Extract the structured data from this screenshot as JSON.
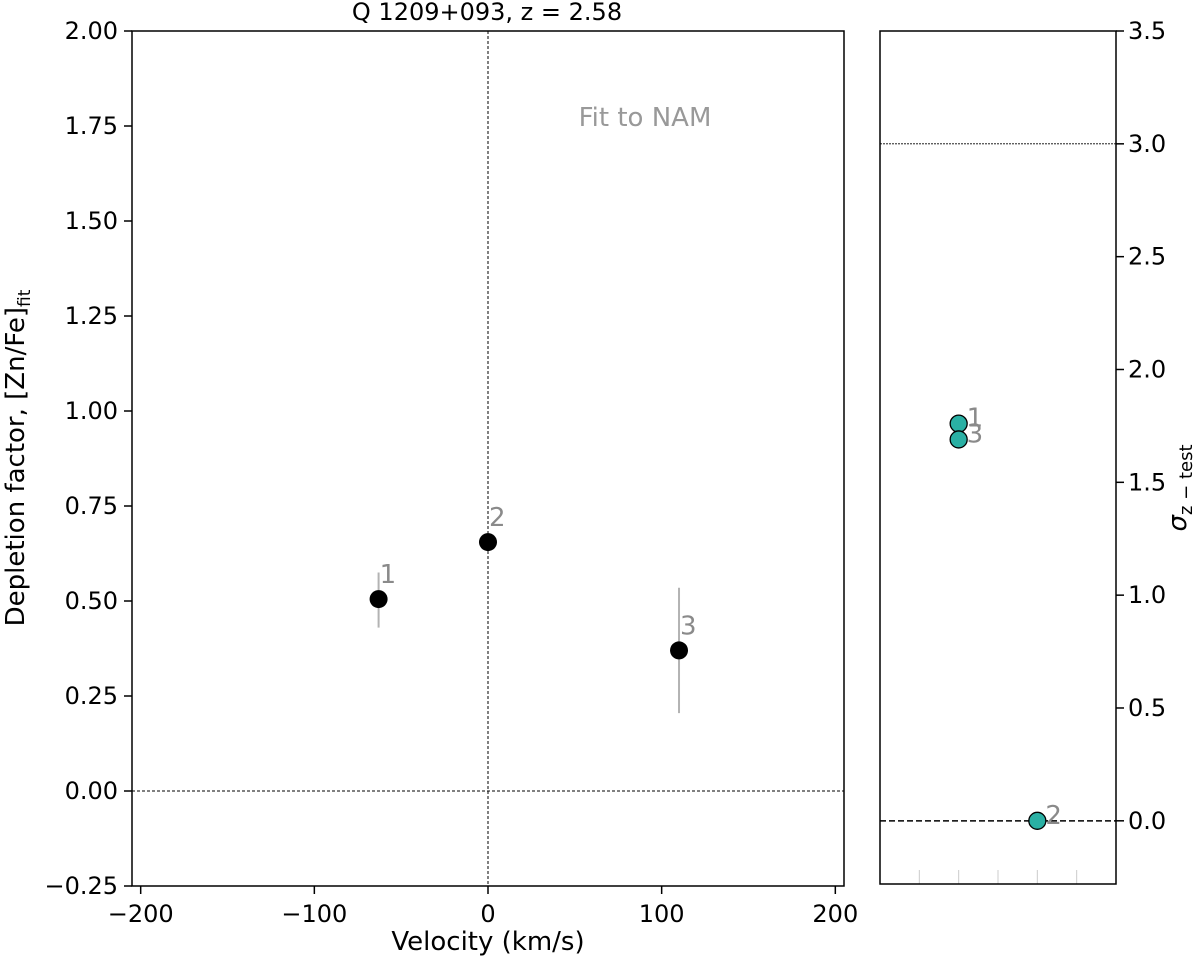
{
  "chart_data": [
    {
      "type": "scatter",
      "title": "Q 1209+093, z = 2.58",
      "xlabel": "Velocity (km/s)",
      "ylabel_main": "Depletion factor, [Zn/Fe]",
      "ylabel_sub": "fit",
      "annotation": "Fit to NAM",
      "xlim": [
        -205,
        205
      ],
      "ylim": [
        -0.25,
        2.0
      ],
      "xticks": [
        -200,
        -100,
        0,
        100,
        200
      ],
      "xtick_labels": [
        "−200",
        "−100",
        "0",
        "100",
        "200"
      ],
      "yticks": [
        -0.25,
        0.0,
        0.25,
        0.5,
        0.75,
        1.0,
        1.25,
        1.5,
        1.75,
        2.0
      ],
      "ytick_labels": [
        "−0.25",
        "0.00",
        "0.25",
        "0.50",
        "0.75",
        "1.00",
        "1.25",
        "1.50",
        "1.75",
        "2.00"
      ],
      "reference_lines": {
        "y": 0.0,
        "x": 0
      },
      "grid": false,
      "marker_color": "#000000",
      "errorbar_color": "#b3b3b3",
      "points": [
        {
          "label": "1",
          "x": -63,
          "y": 0.505,
          "yerr_low": 0.075,
          "yerr_high": 0.07
        },
        {
          "label": "2",
          "x": 0,
          "y": 0.655,
          "yerr_low": 0.0,
          "yerr_high": 0.0
        },
        {
          "label": "3",
          "x": 110,
          "y": 0.37,
          "yerr_low": 0.165,
          "yerr_high": 0.165
        }
      ]
    },
    {
      "type": "scatter",
      "ylabel_main": "σ",
      "ylabel_sub": "z − test",
      "ylim": [
        -0.28,
        3.5
      ],
      "yticks": [
        0.0,
        0.5,
        1.0,
        1.5,
        2.0,
        2.5,
        3.0,
        3.5
      ],
      "ytick_labels": [
        "0.0",
        "0.5",
        "1.0",
        "1.5",
        "2.0",
        "2.5",
        "3.0",
        "3.5"
      ],
      "reference_lines": {
        "y_dashed": 0.0,
        "y_dotted": 3.0
      },
      "grid": false,
      "marker_color": "#2ab0a4",
      "points": [
        {
          "label": "1",
          "x": 2,
          "y": 1.76
        },
        {
          "label": "3",
          "x": 2,
          "y": 1.69
        },
        {
          "label": "2",
          "x": 4,
          "y": 0.0
        }
      ]
    }
  ]
}
